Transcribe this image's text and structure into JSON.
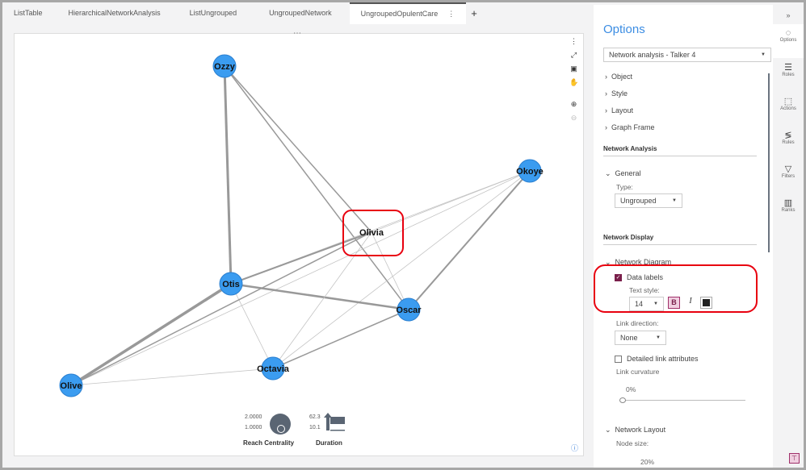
{
  "tabs": [
    {
      "label": "ListTable"
    },
    {
      "label": "HierarchicalNetworkAnalysis"
    },
    {
      "label": "ListUngrouped"
    },
    {
      "label": "UngroupedNetwork"
    },
    {
      "label": "UngroupedOpulentCare",
      "active": true
    }
  ],
  "tab_more": "⋮",
  "tab_add": "+",
  "canvas": {
    "menu_dots": "⋯",
    "info": "ⓘ"
  },
  "graph": {
    "node_color": "#3b9cf0",
    "nodes": [
      {
        "id": "Ozzy"
      },
      {
        "id": "Okoye"
      },
      {
        "id": "Olivia",
        "highlighted": true
      },
      {
        "id": "Otis"
      },
      {
        "id": "Oscar"
      },
      {
        "id": "Octavia"
      },
      {
        "id": "Olive"
      }
    ],
    "links": [
      [
        "Ozzy",
        "Otis",
        3
      ],
      [
        "Ozzy",
        "Olivia",
        1.5
      ],
      [
        "Ozzy",
        "Oscar",
        1.5
      ],
      [
        "Okoye",
        "Olivia",
        0.8
      ],
      [
        "Okoye",
        "Otis",
        0.8
      ],
      [
        "Okoye",
        "Oscar",
        2
      ],
      [
        "Okoye",
        "Octavia",
        0.8
      ],
      [
        "Okoye",
        "Olive",
        0.8
      ],
      [
        "Otis",
        "Olive",
        3.5
      ],
      [
        "Otis",
        "Oscar",
        2.5
      ],
      [
        "Otis",
        "Olivia",
        2
      ],
      [
        "Otis",
        "Octavia",
        0.8
      ],
      [
        "Olivia",
        "Octavia",
        0.8
      ],
      [
        "Olivia",
        "Oscar",
        0.8
      ],
      [
        "Olivia",
        "Olive",
        1.5
      ],
      [
        "Octavia",
        "Olive",
        0.8
      ],
      [
        "Octavia",
        "Oscar",
        1.5
      ]
    ]
  },
  "legend": {
    "size_title": "Reach Centrality",
    "size_max": "2.0000",
    "size_min": "1.0000",
    "width_title": "Duration",
    "width_max": "62.3",
    "width_min": "10.1"
  },
  "panel": {
    "title": "Options",
    "object_select": "Network analysis - Talker 4",
    "sections": [
      "Object",
      "Style",
      "Layout",
      "Graph Frame"
    ],
    "network_analysis": "Network Analysis",
    "general": "General",
    "type_label": "Type:",
    "type_value": "Ungrouped",
    "network_display": "Network Display",
    "network_diagram": "Network Diagram",
    "data_labels": "Data labels",
    "data_labels_checked": true,
    "text_style": "Text style:",
    "font_size": "14",
    "bold": "B",
    "italic": "I",
    "link_direction": "Link direction:",
    "link_direction_value": "None",
    "detailed_links": "Detailed link attributes",
    "detailed_links_checked": false,
    "link_curvature": "Link curvature",
    "curvature_value": "0%",
    "network_layout": "Network Layout",
    "node_size": "Node size:",
    "node_size_value": "20%"
  },
  "rail": {
    "collapse": "»",
    "items": [
      {
        "label": "Options",
        "icon": "paint-icon"
      },
      {
        "label": "Roles",
        "icon": "roles-icon"
      },
      {
        "label": "Actions",
        "icon": "actions-icon"
      },
      {
        "label": "Rules",
        "icon": "rules-icon"
      },
      {
        "label": "Filters",
        "icon": "filter-icon"
      },
      {
        "label": "Ranks",
        "icon": "ranks-icon"
      }
    ]
  },
  "accent": "#e8000f"
}
